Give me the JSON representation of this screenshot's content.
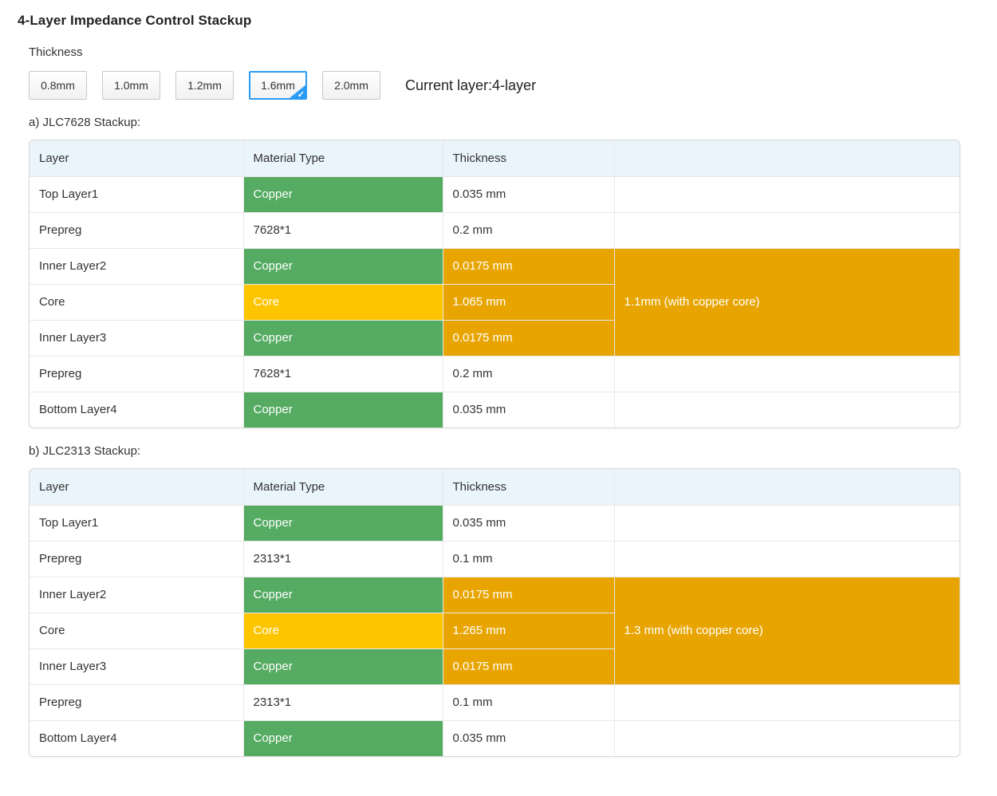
{
  "page": {
    "title": "4-Layer Impedance Control Stackup",
    "thickness_label": "Thickness",
    "current_layer_label": "Current layer:4-layer"
  },
  "icons": {
    "check": "✓"
  },
  "colors": {
    "accent_blue": "#2b9cf3",
    "copper_green": "#55ab62",
    "core_yellow": "#fdc500",
    "highlight_orange": "#e8a501",
    "header_bg_blue": "#eaf4fb"
  },
  "thickness_options": [
    {
      "label": "0.8mm",
      "selected": false
    },
    {
      "label": "1.0mm",
      "selected": false
    },
    {
      "label": "1.2mm",
      "selected": false
    },
    {
      "label": "1.6mm",
      "selected": true
    },
    {
      "label": "2.0mm",
      "selected": false
    }
  ],
  "tables": [
    {
      "caption": "a) JLC7628 Stackup:",
      "headers": [
        "Layer",
        "Material Type",
        "Thickness",
        ""
      ],
      "span_note": "1.1mm (with copper core)",
      "rows": [
        {
          "layer": "Top Layer1",
          "material": "Copper",
          "material_type": "copper",
          "thickness": "0.035 mm",
          "thickness_highlight": false,
          "span": "none"
        },
        {
          "layer": "Prepreg",
          "material": "7628*1",
          "material_type": "prepreg",
          "thickness": "0.2 mm",
          "thickness_highlight": false,
          "span": "none"
        },
        {
          "layer": "Inner Layer2",
          "material": "Copper",
          "material_type": "copper",
          "thickness": "0.0175 mm",
          "thickness_highlight": true,
          "span": "start"
        },
        {
          "layer": "Core",
          "material": "Core",
          "material_type": "core",
          "thickness": "1.065 mm",
          "thickness_highlight": true,
          "span": "mid"
        },
        {
          "layer": "Inner Layer3",
          "material": "Copper",
          "material_type": "copper",
          "thickness": "0.0175 mm",
          "thickness_highlight": true,
          "span": "mid"
        },
        {
          "layer": "Prepreg",
          "material": "7628*1",
          "material_type": "prepreg",
          "thickness": "0.2 mm",
          "thickness_highlight": false,
          "span": "none"
        },
        {
          "layer": "Bottom Layer4",
          "material": "Copper",
          "material_type": "copper",
          "thickness": "0.035 mm",
          "thickness_highlight": false,
          "span": "none"
        }
      ]
    },
    {
      "caption": "b) JLC2313 Stackup:",
      "headers": [
        "Layer",
        "Material Type",
        "Thickness",
        ""
      ],
      "span_note": "1.3 mm (with copper core)",
      "rows": [
        {
          "layer": "Top Layer1",
          "material": "Copper",
          "material_type": "copper",
          "thickness": "0.035 mm",
          "thickness_highlight": false,
          "span": "none"
        },
        {
          "layer": "Prepreg",
          "material": "2313*1",
          "material_type": "prepreg",
          "thickness": "0.1 mm",
          "thickness_highlight": false,
          "span": "none"
        },
        {
          "layer": "Inner Layer2",
          "material": "Copper",
          "material_type": "copper",
          "thickness": "0.0175 mm",
          "thickness_highlight": true,
          "span": "start"
        },
        {
          "layer": "Core",
          "material": "Core",
          "material_type": "core",
          "thickness": "1.265 mm",
          "thickness_highlight": true,
          "span": "mid"
        },
        {
          "layer": "Inner Layer3",
          "material": "Copper",
          "material_type": "copper",
          "thickness": "0.0175 mm",
          "thickness_highlight": true,
          "span": "mid"
        },
        {
          "layer": "Prepreg",
          "material": "2313*1",
          "material_type": "prepreg",
          "thickness": "0.1 mm",
          "thickness_highlight": false,
          "span": "none"
        },
        {
          "layer": "Bottom Layer4",
          "material": "Copper",
          "material_type": "copper",
          "thickness": "0.035 mm",
          "thickness_highlight": false,
          "span": "none"
        }
      ]
    }
  ]
}
